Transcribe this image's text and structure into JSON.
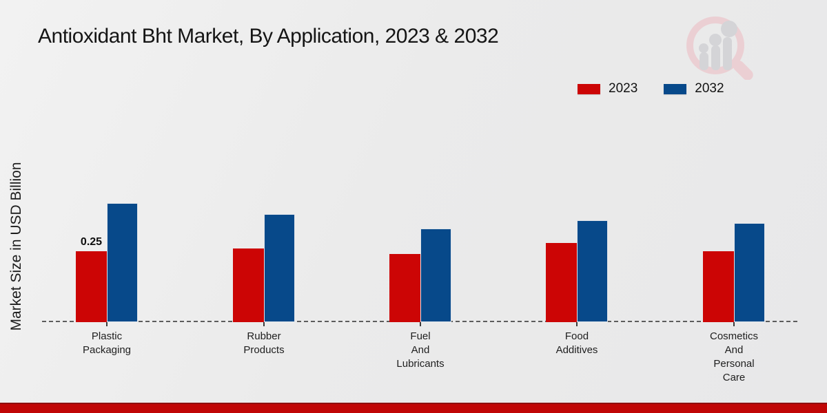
{
  "title": "Antioxidant Bht Market, By Application, 2023 & 2032",
  "y_axis_label": "Market Size in USD Billion",
  "legend": {
    "position": "top-right",
    "items": [
      {
        "label": "2023",
        "color": "#cc0505"
      },
      {
        "label": "2032",
        "color": "#07498a"
      }
    ]
  },
  "colors": {
    "series_2023": "#cc0505",
    "series_2032": "#07498a",
    "background": "#ebebeb",
    "bottom_band": "#c00606",
    "axis_dash": "#5c5c5c",
    "text": "#161616",
    "watermark_pink": "#eccdd1",
    "watermark_gray": "#d2d2d6"
  },
  "watermark_icon": "magnifier-bar-chart-logo",
  "chart_data": {
    "type": "bar",
    "title": "Antioxidant Bht Market, By Application, 2023 & 2032",
    "xlabel": "",
    "ylabel": "Market Size in USD Billion",
    "categories": [
      "Plastic\nPackaging",
      "Rubber\nProducts",
      "Fuel\nAnd\nLubricants",
      "Food\nAdditives",
      "Cosmetics\nAnd\nPersonal\nCare"
    ],
    "series": [
      {
        "name": "2023",
        "color": "#cc0505",
        "values": [
          0.25,
          0.26,
          0.24,
          0.28,
          0.25
        ],
        "value_labels": [
          "0.25",
          "",
          "",
          "",
          ""
        ]
      },
      {
        "name": "2032",
        "color": "#07498a",
        "values": [
          0.42,
          0.38,
          0.33,
          0.36,
          0.35
        ],
        "value_labels": [
          "",
          "",
          "",
          "",
          ""
        ]
      }
    ],
    "ylim": [
      0,
      0.55
    ],
    "grid": false,
    "y_axis_ticks_visible": false,
    "baseline_style": "dashed",
    "legend_position": "top-right"
  }
}
